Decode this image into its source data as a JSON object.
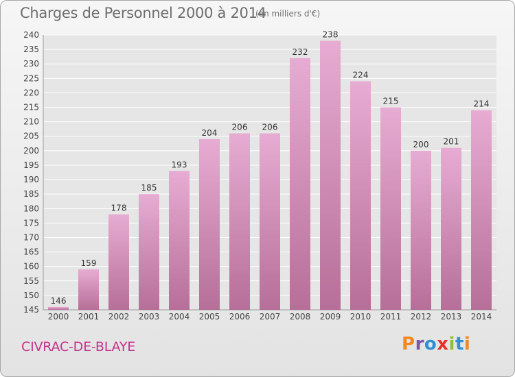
{
  "header": {
    "title": "Charges de Personnel 2000 à 2014",
    "subtitle": "(en milliers d'€)"
  },
  "footer": {
    "commune": "CIVRAC-DE-BLAYE",
    "logo_text": "Proxiti"
  },
  "colors": {
    "bar_top": "#e7acd3",
    "bar_bottom": "#b66f98",
    "commune": "#c4338a",
    "logo_letters": [
      "#f08a1f",
      "#7a55a8",
      "#2e8fd4",
      "#e2332c",
      "#8bbf35",
      "#2e8fd4",
      "#f08a1f"
    ]
  },
  "chart_data": {
    "type": "bar",
    "categories": [
      "2000",
      "2001",
      "2002",
      "2003",
      "2004",
      "2005",
      "2006",
      "2007",
      "2008",
      "2009",
      "2010",
      "2011",
      "2012",
      "2013",
      "2014"
    ],
    "values": [
      146,
      159,
      178,
      185,
      193,
      204,
      206,
      206,
      232,
      238,
      224,
      215,
      200,
      201,
      214
    ],
    "ylim": [
      145,
      240
    ],
    "yticks": [
      145,
      150,
      155,
      160,
      165,
      170,
      175,
      180,
      185,
      190,
      195,
      200,
      205,
      210,
      215,
      220,
      225,
      230,
      235,
      240
    ],
    "grid": true,
    "xlabel": "",
    "ylabel": ""
  }
}
